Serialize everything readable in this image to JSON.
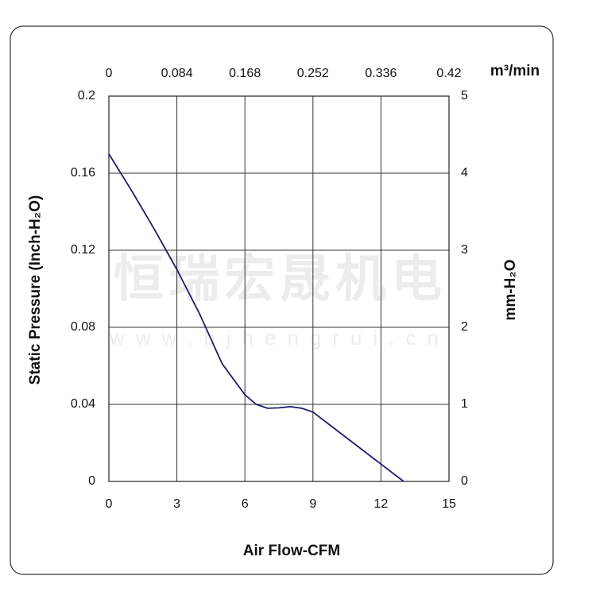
{
  "chart_data": {
    "type": "line",
    "xlabel": "Air Flow-CFM",
    "ylabel": "Static Pressure (Inch-H₂O)",
    "y2label": "mm-H₂O",
    "x2label": "m³/min",
    "watermark": "恒瑞宏晟机电",
    "watermark_url": "www.bjhengrui.cn",
    "xlim": [
      0,
      15
    ],
    "xticks": [
      0,
      3,
      6,
      9,
      12,
      15
    ],
    "x2lim": [
      0,
      0.42
    ],
    "x2ticks": [
      0,
      0.084,
      0.168,
      0.252,
      0.336,
      0.42
    ],
    "ylim": [
      0,
      0.2
    ],
    "yticks": [
      0,
      0.04,
      0.08,
      0.12,
      0.16,
      0.2
    ],
    "y2lim": [
      0,
      5
    ],
    "y2ticks": [
      0,
      1,
      2,
      3,
      4,
      5
    ],
    "grid": true,
    "x": [
      0,
      1,
      2,
      3,
      4,
      5,
      6,
      6.5,
      7,
      7.5,
      8,
      8.5,
      9,
      10,
      11,
      12,
      13
    ],
    "series": [
      {
        "color": "#1c1c6e",
        "values": [
          0.17,
          0.151,
          0.131,
          0.11,
          0.087,
          0.061,
          0.045,
          0.04,
          0.038,
          0.0382,
          0.0388,
          0.038,
          0.036,
          0.027,
          0.018,
          0.009,
          0
        ]
      }
    ]
  }
}
